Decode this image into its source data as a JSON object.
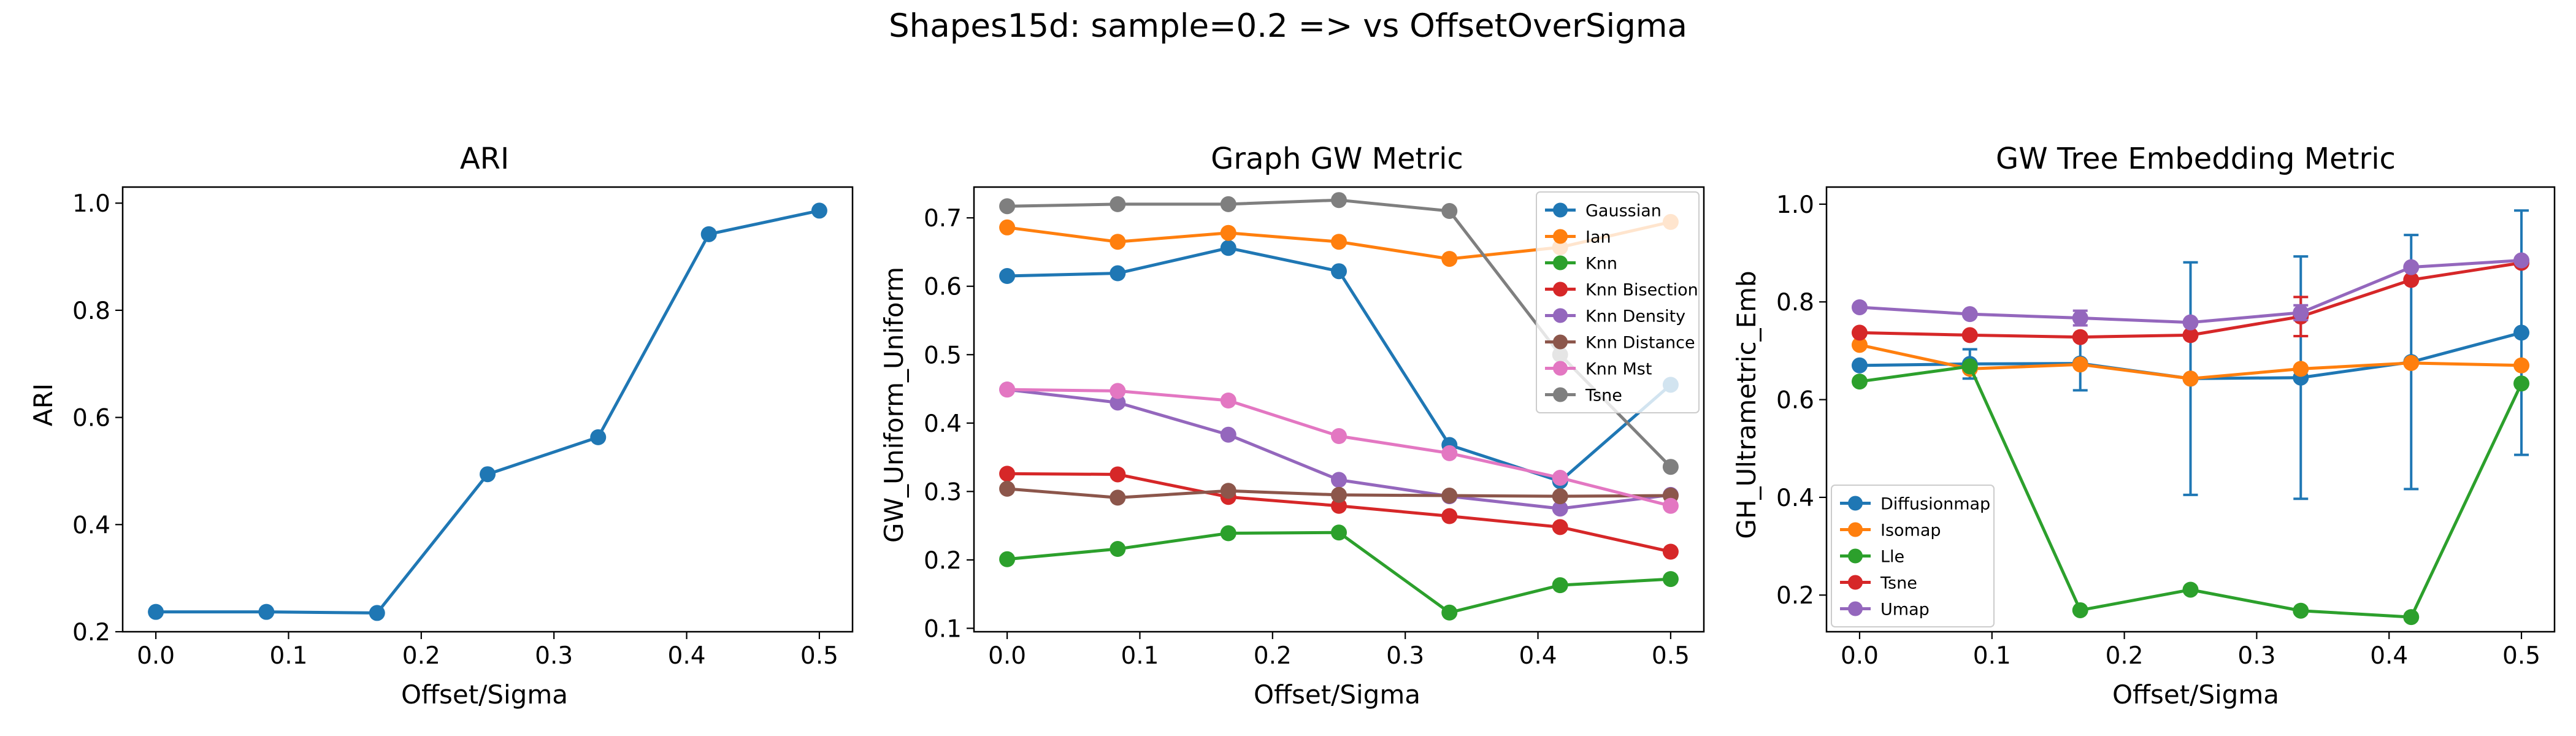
{
  "figure": {
    "suptitle": "Shapes15d: sample=0.2 => vs OffsetOverSigma"
  },
  "chart_data": [
    {
      "type": "line",
      "title": "ARI",
      "xlabel": "Offset/Sigma",
      "ylabel": "ARI",
      "xlim": [
        -0.025,
        0.525
      ],
      "ylim": [
        0.2,
        1.03
      ],
      "xticks": [
        0.0,
        0.1,
        0.2,
        0.3,
        0.4,
        0.5
      ],
      "xticklabels": [
        "0.0",
        "0.1",
        "0.2",
        "0.3",
        "0.4",
        "0.5"
      ],
      "yticks": [
        0.2,
        0.4,
        0.6,
        0.8,
        1.0
      ],
      "yticklabels": [
        "0.2",
        "0.4",
        "0.6",
        "0.8",
        "1.0"
      ],
      "x": [
        0.0,
        0.0833,
        0.1667,
        0.25,
        0.3333,
        0.4167,
        0.5
      ],
      "series": [
        {
          "name": "",
          "color": "#1f77b4",
          "values": [
            0.237,
            0.237,
            0.235,
            0.494,
            0.563,
            0.942,
            0.986
          ]
        }
      ],
      "legend": "none"
    },
    {
      "type": "line",
      "title": "Graph GW Metric",
      "xlabel": "Offset/Sigma",
      "ylabel": "GW_Uniform_Uniform",
      "xlim": [
        -0.025,
        0.525
      ],
      "ylim": [
        0.095,
        0.745
      ],
      "xticks": [
        0.0,
        0.1,
        0.2,
        0.3,
        0.4,
        0.5
      ],
      "xticklabels": [
        "0.0",
        "0.1",
        "0.2",
        "0.3",
        "0.4",
        "0.5"
      ],
      "yticks": [
        0.1,
        0.2,
        0.3,
        0.4,
        0.5,
        0.6,
        0.7
      ],
      "yticklabels": [
        "0.1",
        "0.2",
        "0.3",
        "0.4",
        "0.5",
        "0.6",
        "0.7"
      ],
      "x": [
        0.0,
        0.0833,
        0.1667,
        0.25,
        0.3333,
        0.4167,
        0.5
      ],
      "series": [
        {
          "name": "Gaussian",
          "color": "#1f77b4",
          "values": [
            0.615,
            0.619,
            0.656,
            0.622,
            0.368,
            0.315,
            0.456
          ]
        },
        {
          "name": "Ian",
          "color": "#ff7f0e",
          "values": [
            0.686,
            0.665,
            0.678,
            0.665,
            0.64,
            0.657,
            0.694
          ]
        },
        {
          "name": "Knn",
          "color": "#2ca02c",
          "values": [
            0.201,
            0.216,
            0.239,
            0.24,
            0.123,
            0.163,
            0.172
          ]
        },
        {
          "name": "Knn Bisection",
          "color": "#d62728",
          "values": [
            0.326,
            0.325,
            0.292,
            0.279,
            0.264,
            0.248,
            0.212
          ]
        },
        {
          "name": "Knn Density",
          "color": "#9467bd",
          "values": [
            0.449,
            0.43,
            0.383,
            0.317,
            0.293,
            0.275,
            0.295
          ]
        },
        {
          "name": "Knn Distance",
          "color": "#8c564b",
          "values": [
            0.304,
            0.291,
            0.301,
            0.295,
            0.294,
            0.293,
            0.294
          ]
        },
        {
          "name": "Knn Mst",
          "color": "#e377c2",
          "values": [
            0.449,
            0.447,
            0.433,
            0.381,
            0.356,
            0.32,
            0.279
          ]
        },
        {
          "name": "Tsne",
          "color": "#7f7f7f",
          "values": [
            0.717,
            0.72,
            0.72,
            0.726,
            0.71,
            0.5,
            0.336
          ]
        }
      ],
      "legend": "top-right"
    },
    {
      "type": "line",
      "title": "GW Tree Embedding Metric",
      "xlabel": "Offset/Sigma",
      "ylabel": "GH_Ultrametric_Emb",
      "xlim": [
        -0.025,
        0.525
      ],
      "ylim": [
        0.125,
        1.035
      ],
      "xticks": [
        0.0,
        0.1,
        0.2,
        0.3,
        0.4,
        0.5
      ],
      "xticklabels": [
        "0.0",
        "0.1",
        "0.2",
        "0.3",
        "0.4",
        "0.5"
      ],
      "yticks": [
        0.2,
        0.4,
        0.6,
        0.8,
        1.0
      ],
      "yticklabels": [
        "0.2",
        "0.4",
        "0.6",
        "0.8",
        "1.0"
      ],
      "x": [
        0.0,
        0.0833,
        0.1667,
        0.25,
        0.3333,
        0.4167,
        0.5
      ],
      "series": [
        {
          "name": "Diffusionmap",
          "color": "#1f77b4",
          "values": [
            0.67,
            0.673,
            0.674,
            0.643,
            0.645,
            0.677,
            0.737
          ],
          "errors": [
            0.0,
            0.03,
            0.055,
            0.238,
            0.248,
            0.26,
            0.25
          ]
        },
        {
          "name": "Isomap",
          "color": "#ff7f0e",
          "values": [
            0.712,
            0.663,
            0.672,
            0.643,
            0.663,
            0.675,
            0.67
          ],
          "errors": [
            0,
            0,
            0,
            0,
            0,
            0,
            0
          ]
        },
        {
          "name": "Lle",
          "color": "#2ca02c",
          "values": [
            0.637,
            0.668,
            0.169,
            0.211,
            0.168,
            0.155,
            0.633
          ],
          "errors": [
            0,
            0,
            0,
            0,
            0,
            0,
            0
          ]
        },
        {
          "name": "Tsne",
          "color": "#d62728",
          "values": [
            0.737,
            0.732,
            0.728,
            0.732,
            0.77,
            0.845,
            0.88
          ],
          "errors": [
            0,
            0,
            0,
            0,
            0.04,
            0,
            0
          ]
        },
        {
          "name": "Umap",
          "color": "#9467bd",
          "values": [
            0.789,
            0.775,
            0.767,
            0.758,
            0.778,
            0.871,
            0.885
          ],
          "errors": [
            0,
            0,
            0.015,
            0,
            0.015,
            0,
            0
          ]
        }
      ],
      "legend": "bottom-left"
    }
  ]
}
